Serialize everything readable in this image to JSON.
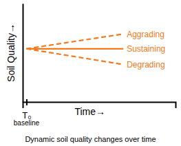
{
  "chart_data": {
    "type": "line",
    "title": "Dynamic soil quality changes over time",
    "x_label": "Time→",
    "y_label": "Soil Quality→",
    "annotations": [
      "baseline"
    ],
    "x": [
      0,
      6.5
    ],
    "series": [
      {
        "name": "Aggrading",
        "color": "#f47a20",
        "line_style": "dashed",
        "values": [
          54,
          69
        ]
      },
      {
        "name": "Sustaining",
        "color": "#f47a20",
        "line_style": "solid",
        "values": [
          54,
          54
        ]
      },
      {
        "name": "Degrading",
        "color": "#f47a20",
        "line_style": "dashed",
        "values": [
          54,
          38
        ]
      }
    ],
    "xlim": [
      -0.25,
      10
    ],
    "ylim": [
      0,
      100
    ],
    "xticks": [
      {
        "value": 0,
        "label": "T₀"
      }
    ],
    "yticks": [],
    "tick_labels": "x",
    "grid": false
  }
}
